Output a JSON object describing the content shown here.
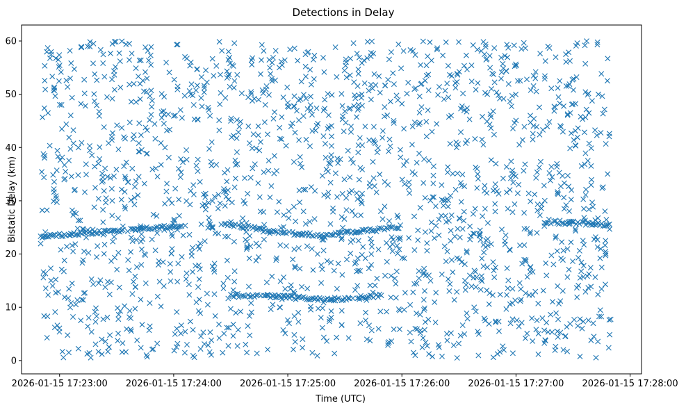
{
  "chart_data": {
    "type": "scatter",
    "title": "Detections in Delay",
    "xlabel": "Time (UTC)",
    "ylabel": "Bistatic Delay (km)",
    "marker": "x",
    "color": "#1f77b4",
    "grid": false,
    "legend": "none",
    "x_unit": "time of day (2026-01-15, UTC)",
    "xlim": [
      "2026-01-15 17:22:40",
      "2026-01-15 17:28:06"
    ],
    "ylim": [
      -2.5,
      63
    ],
    "x_ticks": [
      "17:23:00",
      "17:24:00",
      "17:25:00",
      "17:26:00",
      "17:27:00",
      "17:28:00"
    ],
    "x_tick_labels": [
      "2026-01-15 17:23:00",
      "2026-01-15 17:24:00",
      "2026-01-15 17:25:00",
      "2026-01-15 17:26:00",
      "2026-01-15 17:27:00",
      "2026-01-15 17:28:00"
    ],
    "y_ticks": [
      0,
      10,
      20,
      30,
      40,
      50,
      60
    ],
    "y_tick_labels": [
      "0",
      "10",
      "20",
      "30",
      "40",
      "50",
      "60"
    ],
    "data_time_range": [
      "17:22:50",
      "17:27:50"
    ],
    "clutter_delay_range": [
      0.5,
      60
    ],
    "tracks": [
      {
        "points": [
          [
            "17:22:50",
            23.3
          ],
          [
            "17:23:20",
            24.1
          ],
          [
            "17:23:50",
            24.9
          ],
          [
            "17:24:05",
            25.3
          ]
        ]
      },
      {
        "points": [
          [
            "17:24:25",
            25.7
          ],
          [
            "17:24:40",
            25.0
          ],
          [
            "17:24:55",
            24.0
          ],
          [
            "17:25:20",
            23.5
          ],
          [
            "17:25:40",
            24.4
          ],
          [
            "17:26:00",
            25.2
          ]
        ]
      },
      {
        "points": [
          [
            "17:24:30",
            12.2
          ],
          [
            "17:24:55",
            12.0
          ],
          [
            "17:25:20",
            11.4
          ],
          [
            "17:25:40",
            11.9
          ],
          [
            "17:25:50",
            12.3
          ]
        ]
      },
      {
        "points": [
          [
            "17:27:15",
            26.0
          ],
          [
            "17:27:40",
            25.7
          ],
          [
            "17:27:50",
            25.3
          ]
        ]
      }
    ]
  }
}
